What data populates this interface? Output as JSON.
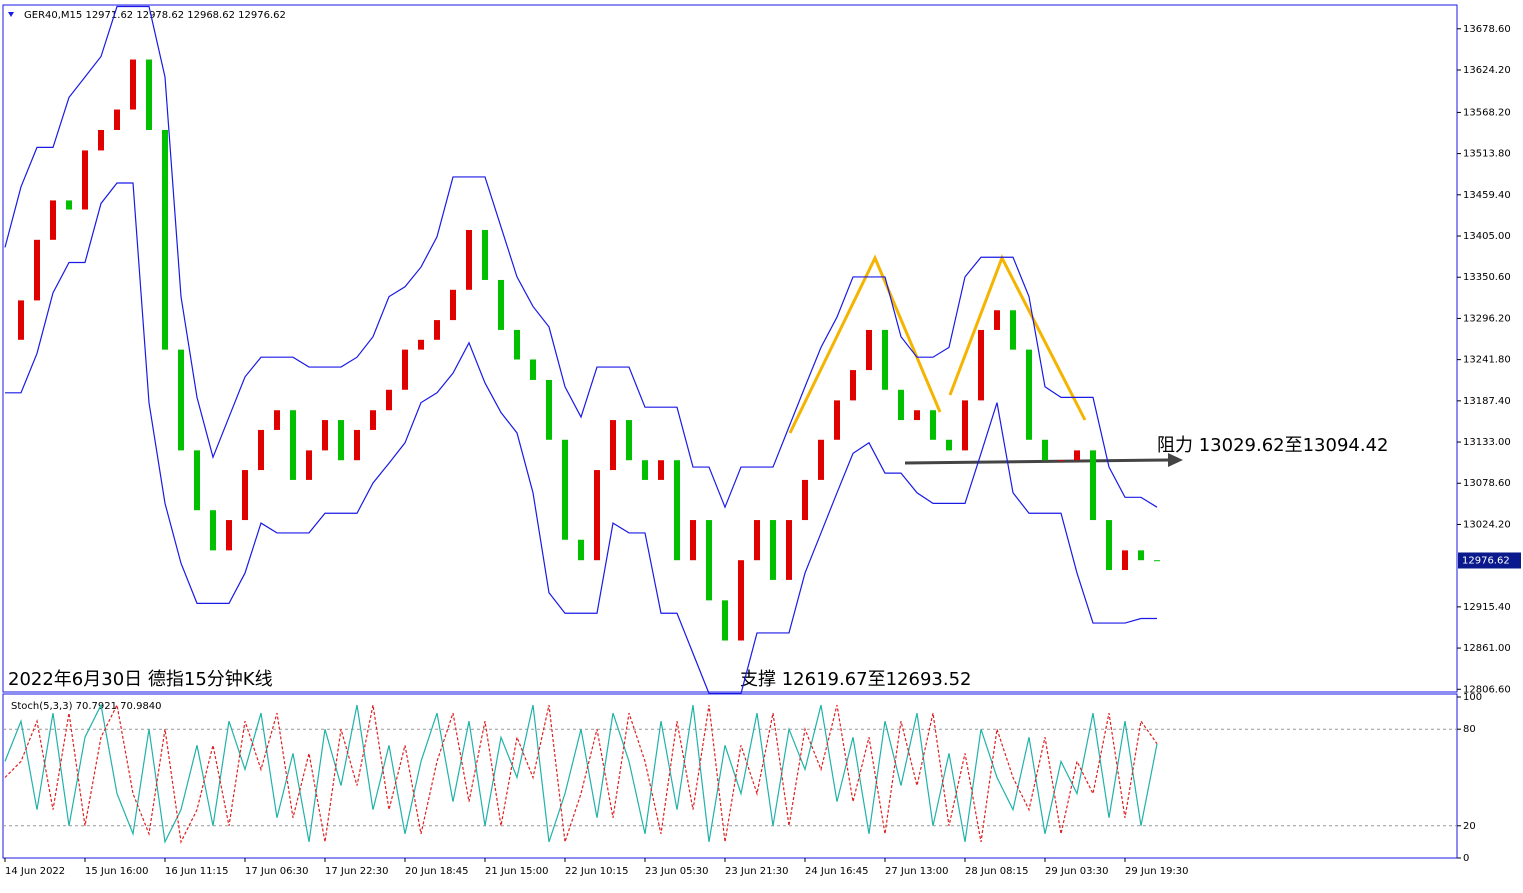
{
  "chart_data": [
    {
      "type": "candlestick",
      "title": "GER40,M15  12971.62 12978.62 12968.62 12976.62",
      "categories": [
        "14 Jun 2022",
        null,
        null,
        null,
        null,
        "15 Jun 16:00",
        null,
        null,
        null,
        null,
        "16 Jun 11:15",
        null,
        null,
        null,
        null,
        "17 Jun 06:30",
        null,
        null,
        null,
        null,
        "17 Jun 22:30",
        null,
        null,
        null,
        null,
        "20 Jun 18:45",
        null,
        null,
        null,
        null,
        "21 Jun 15:00",
        null,
        null,
        null,
        null,
        "22 Jun 10:15",
        null,
        null,
        null,
        null,
        "23 Jun 05:30",
        null,
        null,
        null,
        null,
        "23 Jun 21:30",
        null,
        null,
        null,
        null,
        "24 Jun 16:45",
        null,
        null,
        null,
        null,
        "27 Jun 13:00",
        null,
        null,
        null,
        null,
        "28 Jun 08:15",
        null,
        null,
        null,
        null,
        "29 Jun 03:30",
        null,
        null,
        null,
        null,
        "29 Jun 19:30",
        null,
        null
      ],
      "close": [
        13268,
        13320,
        13400,
        13452,
        13440,
        13518,
        13545,
        13572,
        13638,
        13545,
        13255,
        13122,
        13043,
        12990,
        13030,
        13096,
        13149,
        13175,
        13083,
        13122,
        13162,
        13109,
        13149,
        13175,
        13202,
        13255,
        13268,
        13294,
        13334,
        13413,
        13347,
        13281,
        13242,
        13215,
        13136,
        13004,
        12977,
        13096,
        13162,
        13109,
        13083,
        13109,
        12977,
        13030,
        12924,
        12871,
        12977,
        13030,
        12951,
        13030,
        13083,
        13136,
        13188,
        13228,
        13281,
        13202,
        13162,
        13175,
        13136,
        13122,
        13188,
        13281,
        13307,
        13255,
        13136,
        13109,
        13109,
        13122,
        13030,
        12964,
        12990,
        12977,
        12976.62
      ],
      "up_color": "#e00000",
      "down_color": "#00c000",
      "bands": [
        {
          "color": "#1a1ae6",
          "values": [
            13390,
            13470,
            13522,
            13522,
            13588,
            13615,
            13642,
            13708,
            13708,
            13708,
            13615,
            13325,
            13192,
            13113,
            13166,
            13219,
            13245,
            13245,
            13245,
            13232,
            13232,
            13232,
            13245,
            13272,
            13325,
            13338,
            13364,
            13404,
            13483,
            13483,
            13483,
            13417,
            13351,
            13312,
            13285,
            13206,
            13166,
            13232,
            13232,
            13232,
            13179,
            13179,
            13179,
            13100,
            13100,
            13047,
            13100,
            13100,
            13100,
            13153,
            13206,
            13258,
            13298,
            13351,
            13351,
            13351,
            13272,
            13245,
            13245,
            13258,
            13351,
            13377,
            13377,
            13377,
            13325,
            13206,
            13192,
            13192,
            13192,
            13100,
            13060,
            13060,
            13047
          ]
        },
        {
          "color": "#1a1ae6",
          "values": [
            13198,
            13198,
            13250,
            13330,
            13370,
            13370,
            13448,
            13475,
            13475,
            13185,
            13052,
            12973,
            12920,
            12920,
            12920,
            12960,
            13026,
            13013,
            13013,
            13013,
            13039,
            13039,
            13039,
            13079,
            13105,
            13132,
            13185,
            13198,
            13224,
            13264,
            13211,
            13172,
            13145,
            13066,
            12934,
            12907,
            12907,
            12907,
            13026,
            13013,
            13013,
            12907,
            12907,
            12854,
            12801,
            12801,
            12801,
            12881,
            12881,
            12881,
            12960,
            13013,
            13066,
            13118,
            13132,
            13092,
            13092,
            13066,
            13052,
            13052,
            13052,
            13118,
            13185,
            13066,
            13039,
            13039,
            13039,
            12960,
            12894,
            12894,
            12894,
            12900,
            12900
          ]
        }
      ],
      "ylim": [
        12803,
        13710
      ],
      "yticks": [
        {
          "value": 12806.6,
          "label": "12806.60"
        },
        {
          "value": 12861,
          "label": "12861.00"
        },
        {
          "value": 12915.4,
          "label": "12915.40"
        },
        {
          "value": 13024.2,
          "label": "13024.20"
        },
        {
          "value": 13078.6,
          "label": "13078.60"
        },
        {
          "value": 13133,
          "label": "13133.00"
        },
        {
          "value": 13187.4,
          "label": "13187.40"
        },
        {
          "value": 13241.8,
          "label": "13241.80"
        },
        {
          "value": 13296.2,
          "label": "13296.20"
        },
        {
          "value": 13350.6,
          "label": "13350.60"
        },
        {
          "value": 13405,
          "label": "13405.00"
        },
        {
          "value": 13459.4,
          "label": "13459.40"
        },
        {
          "value": 13513.8,
          "label": "13513.80"
        },
        {
          "value": 13568.2,
          "label": "13568.20"
        },
        {
          "value": 13624.2,
          "label": "13624.20"
        },
        {
          "value": 13678.6,
          "label": "13678.60"
        }
      ],
      "annotations": [
        "2022年6月30日 德指15分钟K线",
        "支撑 12619.67至12693.52",
        "阻力 13029.62至13094.42"
      ]
    },
    {
      "type": "line",
      "title": "Stoch(5,3,3) 70.7921 70.9840",
      "series": [
        {
          "color": "#20b2aa",
          "values": [
            60,
            85,
            30,
            90,
            20,
            75,
            95,
            40,
            15,
            80,
            10,
            30,
            70,
            20,
            85,
            55,
            90,
            25,
            65,
            10,
            80,
            45,
            95,
            30,
            70,
            15,
            60,
            90,
            35,
            85,
            20,
            75,
            50,
            95,
            10,
            40,
            80,
            25,
            90,
            60,
            15,
            85,
            30,
            95,
            10,
            70,
            40,
            90,
            20,
            80,
            55,
            95,
            35,
            75,
            15,
            85,
            45,
            90,
            20,
            65,
            10,
            80,
            50,
            30,
            75,
            15,
            60,
            40,
            90,
            25,
            85,
            20,
            70.7921
          ]
        },
        {
          "color": "#e02020",
          "values": [
            50,
            60,
            85,
            30,
            90,
            20,
            75,
            95,
            40,
            15,
            80,
            10,
            30,
            70,
            20,
            85,
            55,
            90,
            25,
            65,
            10,
            80,
            45,
            95,
            30,
            70,
            15,
            60,
            90,
            35,
            85,
            20,
            75,
            50,
            95,
            10,
            40,
            80,
            25,
            90,
            60,
            15,
            85,
            30,
            95,
            10,
            70,
            40,
            90,
            20,
            80,
            55,
            95,
            35,
            75,
            15,
            85,
            45,
            90,
            20,
            65,
            10,
            80,
            50,
            30,
            75,
            15,
            60,
            40,
            90,
            25,
            85,
            70.984
          ]
        }
      ],
      "ylim": [
        0,
        100
      ],
      "yticks": [
        0,
        20,
        80,
        100
      ],
      "levels": [
        20,
        80
      ]
    }
  ]
}
